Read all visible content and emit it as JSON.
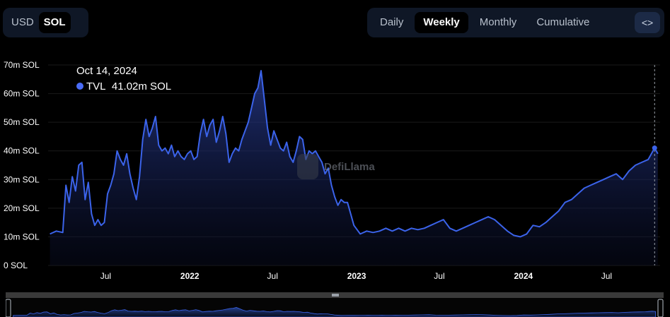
{
  "currency_toggle": {
    "options": [
      "USD",
      "SOL"
    ],
    "selected": "SOL"
  },
  "period_toggle": {
    "options": [
      "Daily",
      "Weekly",
      "Monthly",
      "Cumulative"
    ],
    "selected": "Weekly",
    "embed_label": "<>"
  },
  "tooltip": {
    "date": "Oct 14, 2024",
    "series": "TVL",
    "value": "41.02m SOL"
  },
  "watermark": "DefiLlama",
  "colors": {
    "line": "#3b63ea",
    "fill_top": "#2a3f9a",
    "background": "#000000",
    "grid": "#1a1a1a",
    "tick": "#ffffff"
  },
  "chart_data": {
    "type": "area",
    "series": [
      {
        "name": "TVL",
        "unit": "m SOL",
        "points": [
          [
            "2021-03-01",
            11
          ],
          [
            "2021-03-15",
            12
          ],
          [
            "2021-03-29",
            11.5
          ],
          [
            "2021-04-05",
            28
          ],
          [
            "2021-04-12",
            22
          ],
          [
            "2021-04-19",
            31
          ],
          [
            "2021-04-26",
            26
          ],
          [
            "2021-05-03",
            35
          ],
          [
            "2021-05-10",
            36
          ],
          [
            "2021-05-17",
            23
          ],
          [
            "2021-05-24",
            29
          ],
          [
            "2021-05-31",
            18
          ],
          [
            "2021-06-07",
            14
          ],
          [
            "2021-06-14",
            16
          ],
          [
            "2021-06-21",
            14
          ],
          [
            "2021-06-28",
            15
          ],
          [
            "2021-07-05",
            25
          ],
          [
            "2021-07-12",
            28
          ],
          [
            "2021-07-19",
            32
          ],
          [
            "2021-07-26",
            40
          ],
          [
            "2021-08-02",
            37
          ],
          [
            "2021-08-09",
            35
          ],
          [
            "2021-08-16",
            39
          ],
          [
            "2021-08-23",
            32
          ],
          [
            "2021-08-30",
            27
          ],
          [
            "2021-09-06",
            23
          ],
          [
            "2021-09-13",
            31
          ],
          [
            "2021-09-20",
            44
          ],
          [
            "2021-09-27",
            51
          ],
          [
            "2021-10-04",
            45
          ],
          [
            "2021-10-11",
            48
          ],
          [
            "2021-10-18",
            52
          ],
          [
            "2021-10-25",
            42
          ],
          [
            "2021-11-01",
            40
          ],
          [
            "2021-11-08",
            41
          ],
          [
            "2021-11-15",
            39
          ],
          [
            "2021-11-22",
            42
          ],
          [
            "2021-11-29",
            38
          ],
          [
            "2021-12-06",
            40
          ],
          [
            "2021-12-13",
            38
          ],
          [
            "2021-12-20",
            37
          ],
          [
            "2021-12-27",
            39
          ],
          [
            "2022-01-03",
            40
          ],
          [
            "2022-01-10",
            37
          ],
          [
            "2022-01-17",
            38
          ],
          [
            "2022-01-24",
            46
          ],
          [
            "2022-01-31",
            51
          ],
          [
            "2022-02-07",
            45
          ],
          [
            "2022-02-14",
            49
          ],
          [
            "2022-02-21",
            51
          ],
          [
            "2022-02-28",
            43
          ],
          [
            "2022-03-07",
            47
          ],
          [
            "2022-03-14",
            52
          ],
          [
            "2022-03-21",
            46
          ],
          [
            "2022-03-28",
            36
          ],
          [
            "2022-04-04",
            39
          ],
          [
            "2022-04-11",
            41
          ],
          [
            "2022-04-18",
            40
          ],
          [
            "2022-04-25",
            44
          ],
          [
            "2022-05-02",
            47
          ],
          [
            "2022-05-09",
            50
          ],
          [
            "2022-05-16",
            55
          ],
          [
            "2022-05-23",
            60
          ],
          [
            "2022-05-30",
            62
          ],
          [
            "2022-06-06",
            68
          ],
          [
            "2022-06-13",
            58
          ],
          [
            "2022-06-20",
            48
          ],
          [
            "2022-06-27",
            42
          ],
          [
            "2022-07-04",
            47
          ],
          [
            "2022-07-11",
            44
          ],
          [
            "2022-07-18",
            41
          ],
          [
            "2022-07-25",
            40
          ],
          [
            "2022-08-01",
            43
          ],
          [
            "2022-08-08",
            38
          ],
          [
            "2022-08-15",
            36
          ],
          [
            "2022-08-22",
            40
          ],
          [
            "2022-08-29",
            45
          ],
          [
            "2022-09-05",
            44
          ],
          [
            "2022-09-12",
            37
          ],
          [
            "2022-09-19",
            40
          ],
          [
            "2022-09-26",
            39
          ],
          [
            "2022-10-03",
            40
          ],
          [
            "2022-10-10",
            38
          ],
          [
            "2022-10-17",
            36
          ],
          [
            "2022-10-24",
            32
          ],
          [
            "2022-10-31",
            34
          ],
          [
            "2022-11-07",
            28
          ],
          [
            "2022-11-14",
            24
          ],
          [
            "2022-11-21",
            21
          ],
          [
            "2022-11-28",
            23
          ],
          [
            "2022-12-05",
            22
          ],
          [
            "2022-12-12",
            22
          ],
          [
            "2022-12-19",
            18
          ],
          [
            "2022-12-26",
            14
          ],
          [
            "2023-01-09",
            11
          ],
          [
            "2023-01-23",
            12
          ],
          [
            "2023-02-06",
            11.5
          ],
          [
            "2023-02-20",
            12
          ],
          [
            "2023-03-06",
            13
          ],
          [
            "2023-03-20",
            12
          ],
          [
            "2023-04-03",
            13
          ],
          [
            "2023-04-17",
            12
          ],
          [
            "2023-05-01",
            13
          ],
          [
            "2023-05-15",
            12.5
          ],
          [
            "2023-05-29",
            13
          ],
          [
            "2023-06-12",
            14
          ],
          [
            "2023-06-26",
            15
          ],
          [
            "2023-07-10",
            16
          ],
          [
            "2023-07-24",
            13
          ],
          [
            "2023-08-07",
            12
          ],
          [
            "2023-08-21",
            13
          ],
          [
            "2023-09-04",
            14
          ],
          [
            "2023-09-18",
            15
          ],
          [
            "2023-10-02",
            16
          ],
          [
            "2023-10-16",
            17
          ],
          [
            "2023-10-30",
            16
          ],
          [
            "2023-11-13",
            14
          ],
          [
            "2023-11-27",
            12
          ],
          [
            "2023-12-11",
            10.5
          ],
          [
            "2023-12-25",
            10
          ],
          [
            "2024-01-08",
            11
          ],
          [
            "2024-01-22",
            14
          ],
          [
            "2024-02-05",
            13.5
          ],
          [
            "2024-02-19",
            15
          ],
          [
            "2024-03-04",
            17
          ],
          [
            "2024-03-18",
            19
          ],
          [
            "2024-04-01",
            22
          ],
          [
            "2024-04-15",
            23
          ],
          [
            "2024-04-29",
            25
          ],
          [
            "2024-05-13",
            27
          ],
          [
            "2024-05-27",
            28
          ],
          [
            "2024-06-10",
            29
          ],
          [
            "2024-06-24",
            30
          ],
          [
            "2024-07-08",
            31
          ],
          [
            "2024-07-22",
            32
          ],
          [
            "2024-08-05",
            30
          ],
          [
            "2024-08-19",
            33
          ],
          [
            "2024-09-02",
            35
          ],
          [
            "2024-09-16",
            36
          ],
          [
            "2024-09-30",
            37
          ],
          [
            "2024-10-07",
            39
          ],
          [
            "2024-10-14",
            41.02
          ],
          [
            "2024-10-21",
            39
          ]
        ]
      }
    ],
    "y_ticks": [
      "0 SOL",
      "10m SOL",
      "20m SOL",
      "30m SOL",
      "40m SOL",
      "50m SOL",
      "60m SOL",
      "70m SOL"
    ],
    "y_tick_values": [
      0,
      10,
      20,
      30,
      40,
      50,
      60,
      70
    ],
    "ylim": [
      0,
      70
    ],
    "x_ticks": [
      {
        "label": "Jul",
        "date": "2021-07-01",
        "bold": false
      },
      {
        "label": "2022",
        "date": "2022-01-01",
        "bold": true
      },
      {
        "label": "Jul",
        "date": "2022-07-01",
        "bold": false
      },
      {
        "label": "2023",
        "date": "2023-01-01",
        "bold": true
      },
      {
        "label": "Jul",
        "date": "2023-07-01",
        "bold": false
      },
      {
        "label": "2024",
        "date": "2024-01-01",
        "bold": true
      },
      {
        "label": "Jul",
        "date": "2024-07-01",
        "bold": false
      }
    ],
    "xlim": [
      "2021-02-25",
      "2024-10-26"
    ],
    "grid": true,
    "hover_date": "2024-10-14"
  }
}
